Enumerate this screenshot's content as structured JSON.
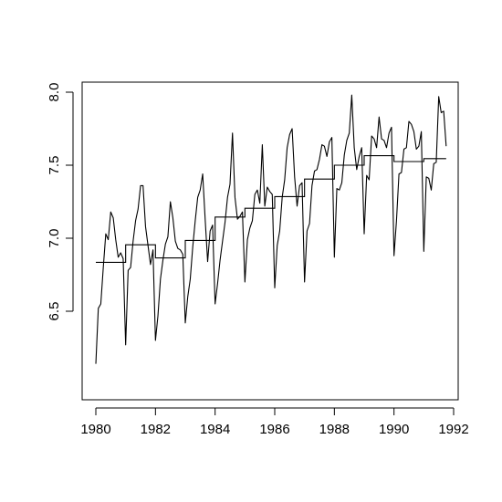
{
  "chart_data": {
    "type": "line",
    "title": "",
    "xlabel": "",
    "ylabel": "",
    "xlim": [
      1980,
      1992
    ],
    "ylim": [
      6.1,
      8.1
    ],
    "x_ticks": [
      1980,
      1982,
      1984,
      1986,
      1988,
      1990,
      1992
    ],
    "x_tick_labels": [
      "1980",
      "1982",
      "1984",
      "1986",
      "1988",
      "1990",
      "1992"
    ],
    "y_ticks": [
      6.5,
      7.0,
      7.5,
      8.0
    ],
    "y_tick_labels": [
      "6.5",
      "7.0",
      "7.5",
      "8.0"
    ],
    "grid": false,
    "series": [
      {
        "kind": "monthly",
        "start_year": 1980,
        "values_by_year": [
          [
            6.14,
            6.52,
            6.55,
            6.8,
            7.03,
            6.99,
            7.18,
            7.14,
            6.99,
            6.87,
            6.9,
            6.86
          ],
          [
            6.27,
            6.78,
            6.8,
            6.98,
            7.12,
            7.2,
            7.36,
            7.36,
            7.08,
            6.95,
            6.82,
            6.92
          ],
          [
            6.3,
            6.47,
            6.72,
            6.85,
            6.96,
            7.01,
            7.25,
            7.14,
            6.98,
            6.93,
            6.92,
            6.89
          ],
          [
            6.42,
            6.6,
            6.72,
            6.94,
            7.12,
            7.28,
            7.33,
            7.44,
            7.13,
            6.84,
            7.05,
            7.09
          ],
          [
            6.55,
            6.69,
            6.85,
            6.98,
            7.11,
            7.28,
            7.37,
            7.72,
            7.28,
            7.13,
            7.15,
            7.18
          ],
          [
            6.7,
            6.99,
            7.07,
            7.12,
            7.3,
            7.33,
            7.24,
            7.64,
            7.22,
            7.35,
            7.32,
            7.3
          ],
          [
            6.66,
            6.95,
            7.05,
            7.28,
            7.4,
            7.62,
            7.71,
            7.75,
            7.42,
            7.22,
            7.36,
            7.38
          ],
          [
            6.7,
            7.05,
            7.1,
            7.36,
            7.46,
            7.47,
            7.54,
            7.64,
            7.63,
            7.56,
            7.66,
            7.69
          ],
          [
            6.87,
            7.34,
            7.33,
            7.38,
            7.57,
            7.67,
            7.72,
            7.98,
            7.62,
            7.47,
            7.56,
            7.62
          ],
          [
            7.03,
            7.43,
            7.4,
            7.7,
            7.68,
            7.62,
            7.83,
            7.68,
            7.67,
            7.62,
            7.72,
            7.76
          ],
          [
            6.88,
            7.12,
            7.44,
            7.45,
            7.61,
            7.62,
            7.8,
            7.78,
            7.73,
            7.61,
            7.63,
            7.73
          ],
          [
            6.91,
            7.42,
            7.41,
            7.33,
            7.51,
            7.52,
            7.97,
            7.86,
            7.87,
            7.63
          ]
        ]
      },
      {
        "kind": "yearly-mean-step",
        "start_year": 1980,
        "values": [
          6.835,
          6.955,
          6.865,
          6.985,
          7.145,
          7.205,
          7.285,
          7.405,
          7.5,
          7.565,
          7.525,
          7.545
        ]
      }
    ]
  }
}
